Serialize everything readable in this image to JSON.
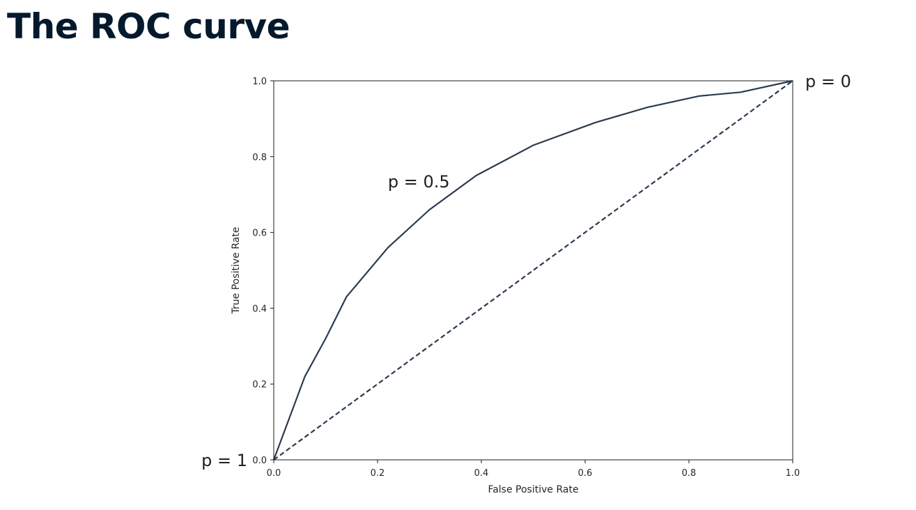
{
  "slide": {
    "title": "The ROC curve"
  },
  "chart_data": {
    "type": "line",
    "xlabel": "False Positive Rate",
    "ylabel": "True Positive Rate",
    "xlim": [
      0.0,
      1.0
    ],
    "ylim": [
      0.0,
      1.0
    ],
    "xticks": [
      "0.0",
      "0.2",
      "0.4",
      "0.6",
      "0.8",
      "1.0"
    ],
    "yticks": [
      "0.0",
      "0.2",
      "0.4",
      "0.6",
      "0.8",
      "1.0"
    ],
    "grid": false,
    "series": [
      {
        "style": "solid",
        "color": "#2b3a4e",
        "x": [
          0.0,
          0.06,
          0.1,
          0.14,
          0.22,
          0.3,
          0.39,
          0.5,
          0.62,
          0.72,
          0.82,
          0.9,
          1.0
        ],
        "y": [
          0.0,
          0.22,
          0.32,
          0.43,
          0.56,
          0.66,
          0.75,
          0.83,
          0.89,
          0.93,
          0.96,
          0.97,
          1.0
        ]
      },
      {
        "style": "dashed",
        "color": "#2b3a4e",
        "x": [
          0.0,
          1.0
        ],
        "y": [
          0.0,
          1.0
        ]
      }
    ],
    "annotations": [
      {
        "text": "p = 1",
        "x": 0.0,
        "y": 0.0,
        "position": "left"
      },
      {
        "text": "p = 0.5",
        "x": 0.22,
        "y": 0.735,
        "position": "right"
      },
      {
        "text": "p = 0",
        "x": 1.0,
        "y": 1.0,
        "position": "right"
      }
    ]
  }
}
